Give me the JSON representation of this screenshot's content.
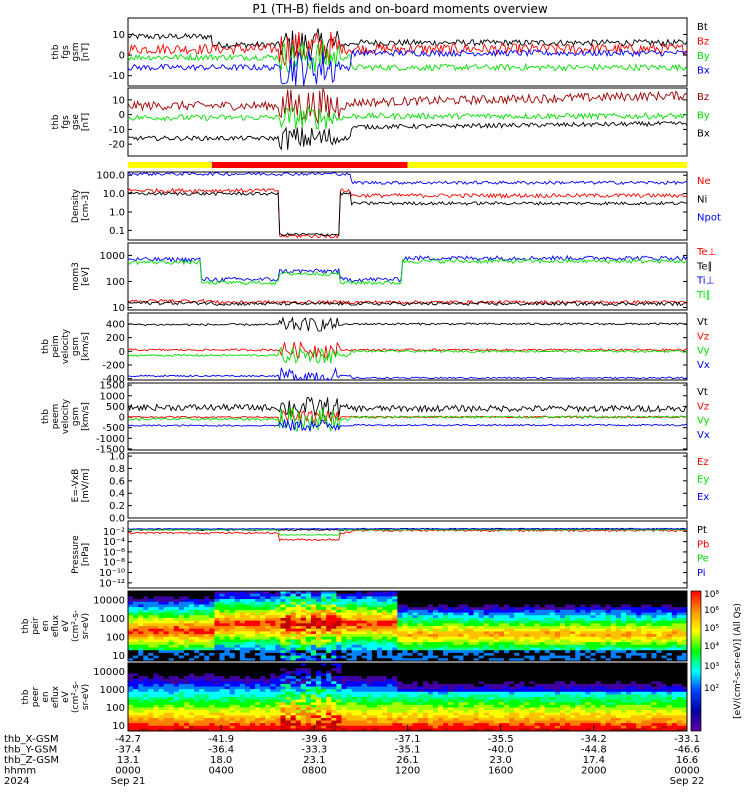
{
  "title": "P1 (TH-B) fields and on-board moments overview",
  "colors": {
    "black": "#000000",
    "red": "#ff0000",
    "green": "#00e000",
    "blue": "#0000ff",
    "darkred": "#a00000",
    "yellow": "#ffff00"
  },
  "chart_data": [
    {
      "type": "line",
      "panel": "fgs_gsm",
      "ylabel": [
        "thb",
        "fgs",
        "gsm",
        "[nT]"
      ],
      "ylim": [
        -15,
        18
      ],
      "yticks": [
        "10",
        "0",
        "-10"
      ],
      "legend": [
        {
          "label": "Bt",
          "color": "black"
        },
        {
          "label": "Bz",
          "color": "red"
        },
        {
          "label": "By",
          "color": "green"
        },
        {
          "label": "Bx",
          "color": "blue"
        }
      ]
    },
    {
      "type": "line",
      "panel": "fgs_gse",
      "ylabel": [
        "thb",
        "fgs",
        "gse",
        "[nT]"
      ],
      "ylim": [
        -28,
        18
      ],
      "yticks": [
        "10",
        "0",
        "-10",
        "-20"
      ],
      "legend": [
        {
          "label": "Bz",
          "color": "darkred"
        },
        {
          "label": "By",
          "color": "green"
        },
        {
          "label": "Bx",
          "color": "black"
        }
      ]
    },
    {
      "type": "bar",
      "panel": "mode_bar",
      "segments": [
        {
          "from": 0,
          "to": 0.15,
          "color": "yellow"
        },
        {
          "from": 0.15,
          "to": 0.5,
          "color": "red"
        },
        {
          "from": 0.5,
          "to": 1,
          "color": "yellow"
        }
      ]
    },
    {
      "type": "line",
      "panel": "density",
      "ylabel": [
        "Density",
        "[cm-3]"
      ],
      "yscale": "log",
      "ylim": [
        0.03,
        150
      ],
      "yticks": [
        "100.0",
        "10.0",
        "1.0",
        "0.1"
      ],
      "legend": [
        {
          "label": "Ne",
          "color": "red"
        },
        {
          "label": "Ni",
          "color": "black"
        },
        {
          "label": "Npot",
          "color": "blue"
        }
      ]
    },
    {
      "type": "line",
      "panel": "temperature",
      "ylabel": [
        "mom3",
        "[eV]"
      ],
      "yscale": "log",
      "ylim": [
        8,
        3000
      ],
      "yticks": [
        "1000",
        "100",
        "10"
      ],
      "legend": [
        {
          "label": "Te⊥",
          "color": "red"
        },
        {
          "label": "Te∥",
          "color": "black"
        },
        {
          "label": "Ti⊥",
          "color": "blue"
        },
        {
          "label": "Ti∥",
          "color": "green"
        }
      ]
    },
    {
      "type": "line",
      "panel": "peim_velocity",
      "ylabel": [
        "thb",
        "peim",
        "velocity",
        "gsm",
        "[km/s]"
      ],
      "ylim": [
        -420,
        560
      ],
      "yticks": [
        "400",
        "200",
        "0",
        "-200",
        "-400"
      ],
      "legend": [
        {
          "label": "Vt",
          "color": "black"
        },
        {
          "label": "Vz",
          "color": "red"
        },
        {
          "label": "Vy",
          "color": "green"
        },
        {
          "label": "Vx",
          "color": "blue"
        }
      ]
    },
    {
      "type": "line",
      "panel": "peem_velocity",
      "ylabel": [
        "thb",
        "peem",
        "velocity",
        "gsm",
        "[km/s]"
      ],
      "ylim": [
        -1550,
        1600
      ],
      "yticks": [
        "1500",
        "1000",
        "500",
        "0",
        "-500",
        "-1000",
        "-1500"
      ],
      "legend": [
        {
          "label": "Vt",
          "color": "black"
        },
        {
          "label": "Vz",
          "color": "red"
        },
        {
          "label": "Vy",
          "color": "green"
        },
        {
          "label": "Vx",
          "color": "blue"
        }
      ]
    },
    {
      "type": "line",
      "panel": "efield",
      "ylabel": [
        "E=-VxB",
        "[mV/m]"
      ],
      "ylim": [
        0,
        1.05
      ],
      "yticks": [
        "1.0",
        "0.8",
        "0.6",
        "0.4",
        "0.2",
        "0.0"
      ],
      "legend": [
        {
          "label": "Ez",
          "color": "red"
        },
        {
          "label": "Ey",
          "color": "green"
        },
        {
          "label": "Ex",
          "color": "blue"
        }
      ]
    },
    {
      "type": "line",
      "panel": "pressure",
      "ylabel": [
        "Pressure",
        "[nPa]"
      ],
      "yscale": "log",
      "ylim": [
        1e-13,
        1
      ],
      "yticks": [
        "10⁻²",
        "10⁻⁴",
        "10⁻⁶",
        "10⁻⁸",
        "10⁻¹⁰",
        "10⁻¹²"
      ],
      "legend": [
        {
          "label": "Pt",
          "color": "black"
        },
        {
          "label": "Pb",
          "color": "red"
        },
        {
          "label": "Pe",
          "color": "green"
        },
        {
          "label": "Pi",
          "color": "blue"
        }
      ]
    },
    {
      "type": "heatmap",
      "panel": "peir_eflux",
      "ylabel": [
        "thb",
        "peir",
        "en",
        "eflux",
        "eV",
        "(cm²-s-",
        "sr-eV)"
      ],
      "yscale": "log",
      "ylim": [
        5,
        30000
      ],
      "yticks": [
        "10000",
        "1000",
        "100",
        "10"
      ]
    },
    {
      "type": "heatmap",
      "panel": "peer_eflux",
      "ylabel": [
        "thb",
        "peer",
        "en",
        "eflux",
        "eV",
        "(cm²-s-",
        "sr-eV)"
      ],
      "yscale": "log",
      "ylim": [
        5,
        30000
      ],
      "yticks": [
        "10000",
        "1000",
        "100",
        "10"
      ]
    },
    {
      "type": "heatmap",
      "panel": "colorbar",
      "ylabel": "[eV/(cm²-s-sr-eV)] (All Qs)",
      "ticks": [
        "10⁸",
        "10⁶",
        "10⁵",
        "10⁴",
        "10³",
        "10²"
      ]
    }
  ],
  "x_axis": {
    "rows": [
      {
        "label": "thb_X-GSM",
        "values": [
          "-42.7",
          "-41.9",
          "-39.6",
          "-37.1",
          "-35.5",
          "-34.2",
          "-33.1"
        ]
      },
      {
        "label": "thb_Y-GSM",
        "values": [
          "-37.4",
          "-36.4",
          "-33.3",
          "-35.1",
          "-40.0",
          "-44.8",
          "-46.6"
        ]
      },
      {
        "label": "thb_Z-GSM",
        "values": [
          "13.1",
          "18.0",
          "23.1",
          "26.1",
          "23.0",
          "17.4",
          "16.6"
        ]
      },
      {
        "label": "hhmm",
        "values": [
          "0000",
          "0400",
          "0800",
          "1200",
          "1600",
          "2000",
          "0000"
        ]
      },
      {
        "label": "2024",
        "values": [
          "Sep 21",
          "",
          "",
          "",
          "",
          "",
          "Sep 22"
        ]
      }
    ]
  }
}
